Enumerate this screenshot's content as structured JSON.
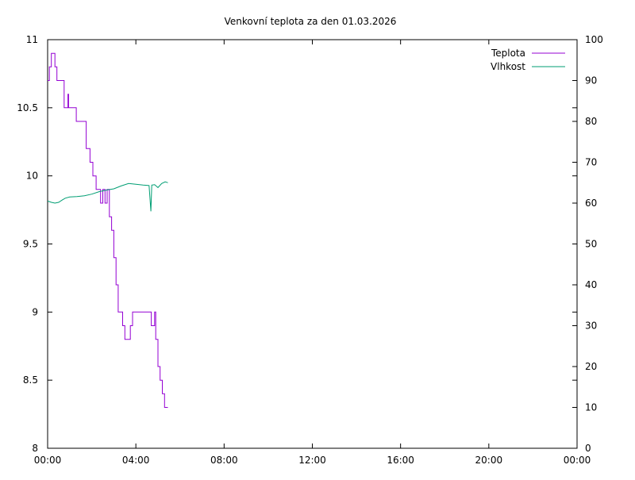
{
  "chart_data": {
    "type": "line",
    "title": "Venkovní teplota za den 01.03.2026",
    "xlabel": "",
    "ylabel": "",
    "y2label": "",
    "x_ticks": [
      "00:00",
      "04:00",
      "08:00",
      "12:00",
      "16:00",
      "20:00",
      "00:00"
    ],
    "xlim_hours": [
      0,
      24
    ],
    "ylim": [
      8,
      11
    ],
    "y_ticks": [
      "8",
      "8.5",
      "9",
      "9.5",
      "10",
      "10.5",
      "11"
    ],
    "y2lim": [
      0,
      100
    ],
    "y2_ticks": [
      "0",
      "10",
      "20",
      "30",
      "40",
      "50",
      "60",
      "70",
      "80",
      "90",
      "100"
    ],
    "grid": false,
    "legend_position": "top-right",
    "series": [
      {
        "name": "Teplota",
        "axis": "left",
        "color": "#9400d3",
        "step": true,
        "points": [
          [
            0.0,
            10.7
          ],
          [
            0.08,
            10.8
          ],
          [
            0.17,
            10.9
          ],
          [
            0.33,
            10.8
          ],
          [
            0.42,
            10.7
          ],
          [
            0.75,
            10.5
          ],
          [
            0.92,
            10.6
          ],
          [
            0.95,
            10.5
          ],
          [
            1.3,
            10.4
          ],
          [
            1.75,
            10.2
          ],
          [
            1.92,
            10.1
          ],
          [
            2.05,
            10.0
          ],
          [
            2.2,
            9.9
          ],
          [
            2.4,
            9.8
          ],
          [
            2.5,
            9.9
          ],
          [
            2.6,
            9.8
          ],
          [
            2.7,
            9.9
          ],
          [
            2.8,
            9.7
          ],
          [
            2.9,
            9.6
          ],
          [
            3.0,
            9.4
          ],
          [
            3.1,
            9.2
          ],
          [
            3.2,
            9.0
          ],
          [
            3.4,
            8.9
          ],
          [
            3.5,
            8.8
          ],
          [
            3.75,
            8.9
          ],
          [
            3.85,
            9.0
          ],
          [
            4.7,
            8.9
          ],
          [
            4.85,
            9.0
          ],
          [
            4.9,
            8.8
          ],
          [
            5.0,
            8.6
          ],
          [
            5.1,
            8.5
          ],
          [
            5.2,
            8.4
          ],
          [
            5.3,
            8.3
          ],
          [
            5.45,
            8.3
          ]
        ]
      },
      {
        "name": "Vlhkost",
        "axis": "right",
        "color": "#009e73",
        "step": false,
        "points": [
          [
            0.0,
            60.5
          ],
          [
            0.17,
            60.2
          ],
          [
            0.33,
            60.0
          ],
          [
            0.5,
            60.2
          ],
          [
            0.67,
            60.8
          ],
          [
            0.8,
            61.2
          ],
          [
            1.0,
            61.5
          ],
          [
            1.33,
            61.6
          ],
          [
            1.67,
            61.8
          ],
          [
            2.0,
            62.2
          ],
          [
            2.33,
            62.8
          ],
          [
            2.67,
            63.2
          ],
          [
            3.0,
            63.5
          ],
          [
            3.33,
            64.2
          ],
          [
            3.67,
            64.8
          ],
          [
            4.0,
            64.6
          ],
          [
            4.33,
            64.4
          ],
          [
            4.6,
            64.3
          ],
          [
            4.68,
            58.0
          ],
          [
            4.72,
            64.4
          ],
          [
            4.85,
            64.5
          ],
          [
            5.0,
            63.8
          ],
          [
            5.17,
            64.8
          ],
          [
            5.33,
            65.2
          ],
          [
            5.45,
            65.0
          ]
        ]
      }
    ]
  }
}
